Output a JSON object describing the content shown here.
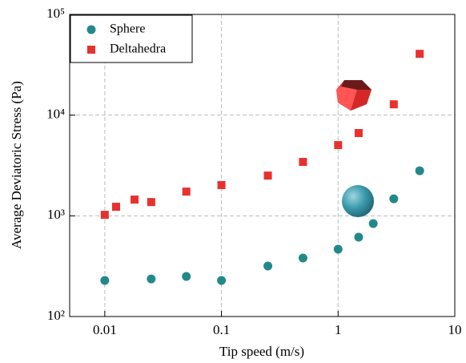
{
  "chart_data": {
    "type": "scatter",
    "x_label": "Tip speed (m/s)",
    "y_label": "Average Deviatoric Stress (Pa)",
    "xlog": true,
    "ylog": true,
    "grid": true,
    "legend": "upper left",
    "xlim": [
      0.005,
      10
    ],
    "xticks": [
      0.01,
      0.1,
      1,
      10
    ],
    "ylim": [
      100,
      100000
    ],
    "yticks": [
      {
        "value": 100,
        "label": "10²"
      },
      {
        "value": 1000,
        "label": "10³"
      },
      {
        "value": 10000,
        "label": "10⁴"
      },
      {
        "value": 100000,
        "label": "10⁵"
      }
    ],
    "series": [
      {
        "name": "Sphere",
        "color": "#22898a",
        "marker": "circle",
        "x": [
          0.01,
          0.025,
          0.05,
          0.1,
          0.25,
          0.5,
          1,
          1.5,
          2,
          3,
          5
        ],
        "values": [
          228,
          236,
          250,
          228,
          317,
          381,
          466,
          613,
          838,
          1476,
          2804
        ]
      },
      {
        "name": "Deltahedra",
        "color": "#e8312f",
        "marker": "square",
        "x": [
          0.01,
          0.0125,
          0.018,
          0.025,
          0.05,
          0.1,
          0.25,
          0.5,
          1,
          1.5,
          3,
          5
        ],
        "values": [
          1023,
          1230,
          1450,
          1370,
          1740,
          2020,
          2510,
          3430,
          5040,
          6640,
          12800,
          40600
        ]
      }
    ]
  }
}
